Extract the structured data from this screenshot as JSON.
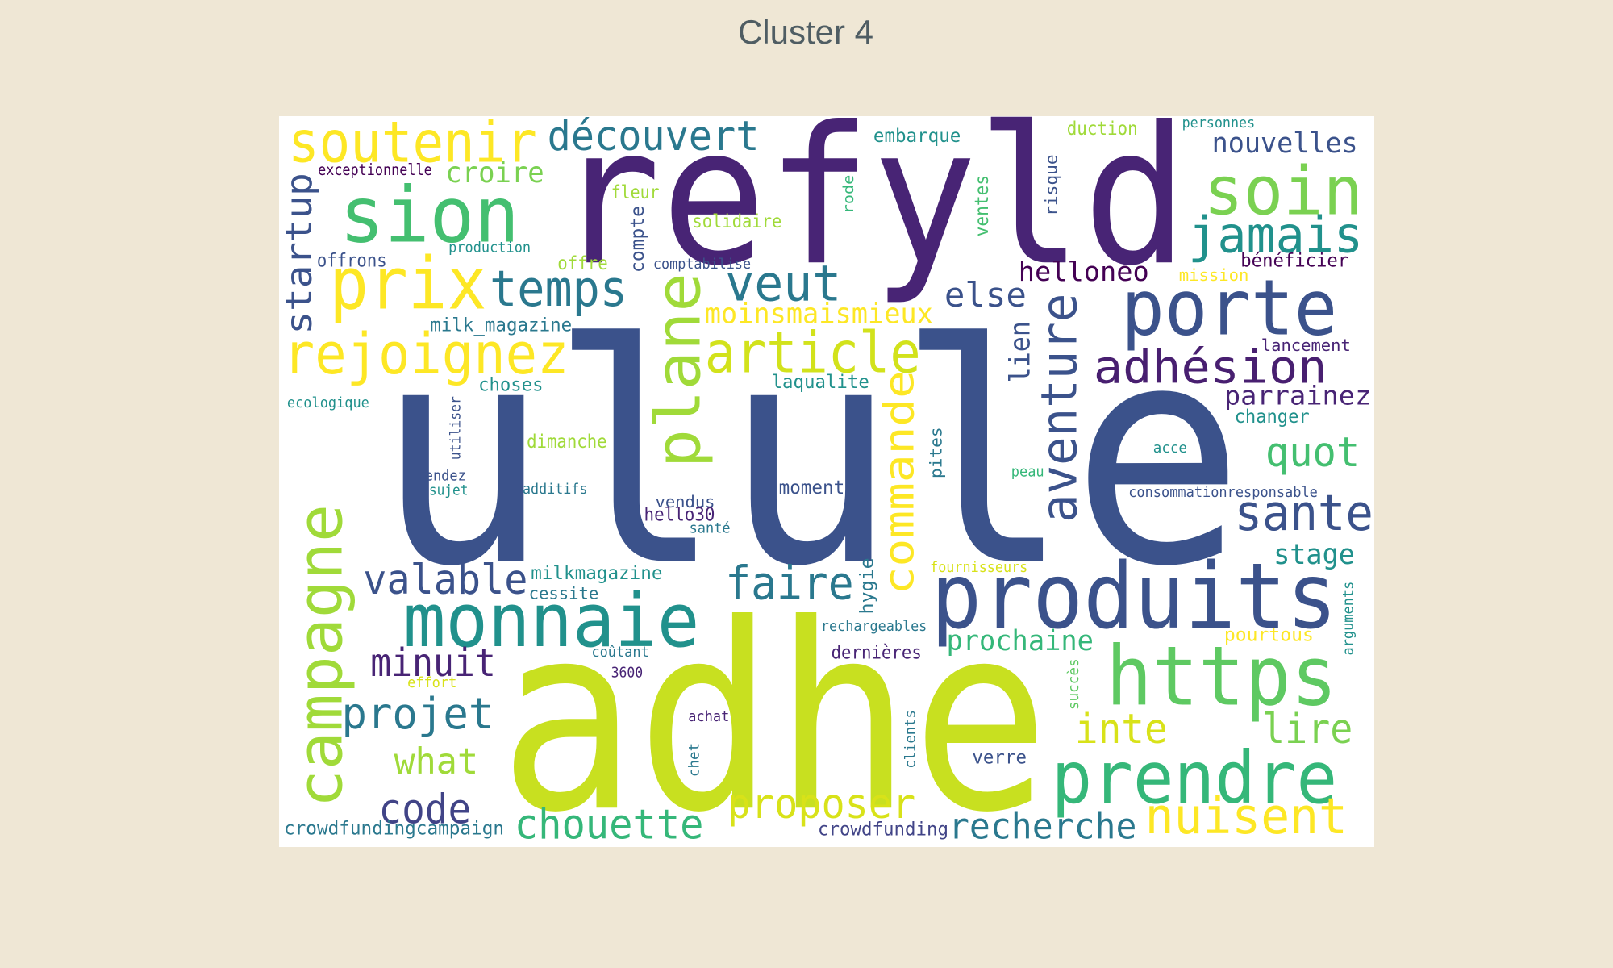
{
  "chart_data": {
    "type": "wordcloud",
    "title": "Cluster 4",
    "words": [
      "refyld",
      "ulule",
      "adhe",
      "produits",
      "https",
      "prendre",
      "porte",
      "monnaie",
      "sion",
      "soin",
      "soutenir",
      "prix",
      "rejoignez",
      "article",
      "temps",
      "veut",
      "découvert",
      "jamais",
      "adhésion",
      "sante",
      "nuisent",
      "faire",
      "valable",
      "minuit",
      "projet",
      "what",
      "code",
      "chouette",
      "proposer",
      "recherche",
      "crowdfundingcampaign",
      "crowdfunding",
      "inte",
      "lire",
      "quot",
      "stage",
      "prochaine",
      "pourtous",
      "else",
      "helloneo",
      "moinsmaismieux",
      "croire",
      "nouvelles",
      "parrainez",
      "changer",
      "bénéficier",
      "lancement",
      "mission",
      "personnes",
      "duction",
      "embarque",
      "fleur",
      "solidaire",
      "offre",
      "comptabilise",
      "production",
      "offrons",
      "exceptionnelle",
      "milk_magazine",
      "choses",
      "laqualite",
      "ecologique",
      "dimanche",
      "rendez",
      "sujet",
      "additifs",
      "vendus",
      "hello30",
      "santé",
      "moment",
      "acce",
      "peau",
      "consommationresponsable",
      "fournisseurs",
      "milkmagazine",
      "cessite",
      "rechargeables",
      "dernières",
      "coûtant",
      "3600",
      "effort",
      "achat",
      "verre",
      "campagne",
      "plane",
      "commande",
      "aventure",
      "startup",
      "lien",
      "utiliser",
      "compte",
      "rode",
      "ventes",
      "risque",
      "pites",
      "hygie",
      "clients",
      "chet",
      "succès",
      "arguments"
    ]
  }
}
